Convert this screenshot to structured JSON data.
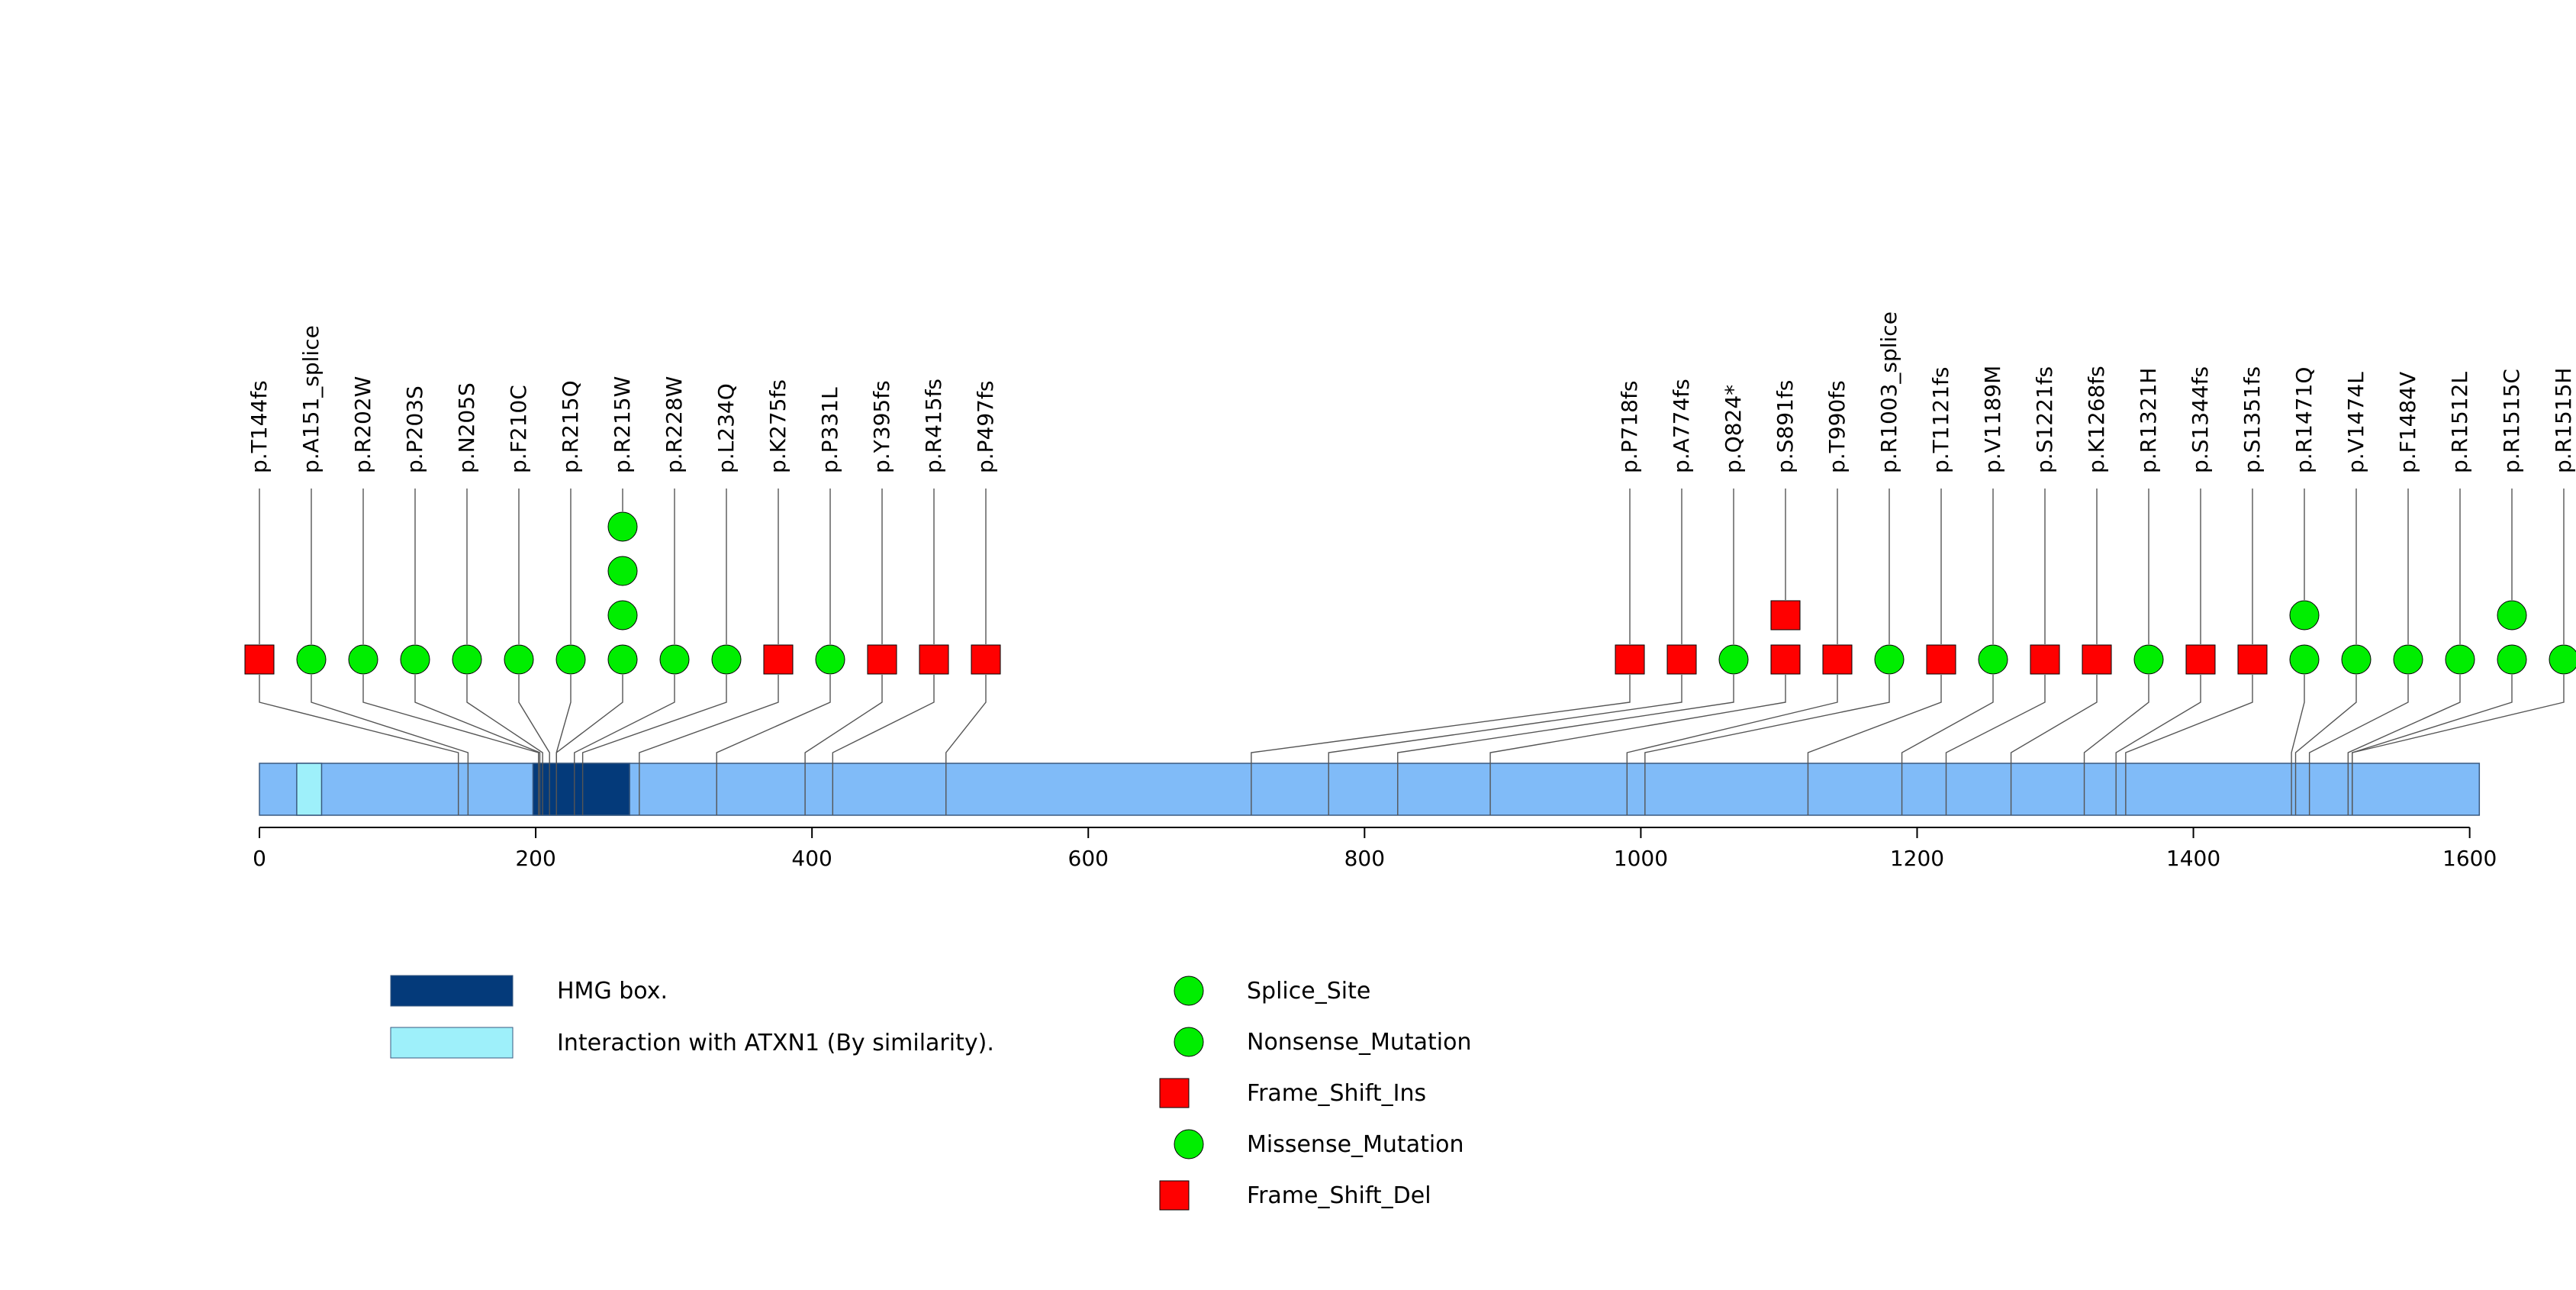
{
  "chart_data": {
    "type": "lollipop",
    "title": "",
    "xlabel": "",
    "ylabel": "",
    "x_range": [
      0,
      1610
    ],
    "x_ticks": [
      0,
      200,
      400,
      600,
      800,
      1000,
      1200,
      1400,
      1600
    ],
    "protein_length": 1607,
    "domains": [
      {
        "name": "HMG box.",
        "start": 198,
        "end": 268,
        "color": "#043a7a"
      },
      {
        "name": "Interaction with ATXN1 (By similarity).",
        "start": 27,
        "end": 45,
        "color": "#9ef0fa"
      }
    ],
    "lollipops": [
      {
        "label": "p.T144fs",
        "position": 144,
        "marks": [
          "Frame_Shift_Del"
        ]
      },
      {
        "label": "p.A151_splice",
        "position": 151,
        "marks": [
          "Splice_Site"
        ]
      },
      {
        "label": "p.R202W",
        "position": 202,
        "marks": [
          "Missense_Mutation"
        ]
      },
      {
        "label": "p.P203S",
        "position": 203,
        "marks": [
          "Missense_Mutation"
        ]
      },
      {
        "label": "p.N205S",
        "position": 205,
        "marks": [
          "Missense_Mutation"
        ]
      },
      {
        "label": "p.F210C",
        "position": 210,
        "marks": [
          "Missense_Mutation"
        ]
      },
      {
        "label": "p.R215Q",
        "position": 215,
        "marks": [
          "Missense_Mutation"
        ]
      },
      {
        "label": "p.R215W",
        "position": 215,
        "marks": [
          "Missense_Mutation",
          "Missense_Mutation",
          "Missense_Mutation",
          "Missense_Mutation"
        ]
      },
      {
        "label": "p.R228W",
        "position": 228,
        "marks": [
          "Missense_Mutation"
        ]
      },
      {
        "label": "p.L234Q",
        "position": 234,
        "marks": [
          "Missense_Mutation"
        ]
      },
      {
        "label": "p.K275fs",
        "position": 275,
        "marks": [
          "Frame_Shift_Del"
        ]
      },
      {
        "label": "p.P331L",
        "position": 331,
        "marks": [
          "Missense_Mutation"
        ]
      },
      {
        "label": "p.Y395fs",
        "position": 395,
        "marks": [
          "Frame_Shift_Del"
        ]
      },
      {
        "label": "p.R415fs",
        "position": 415,
        "marks": [
          "Frame_Shift_Del"
        ]
      },
      {
        "label": "p.P497fs",
        "position": 497,
        "marks": [
          "Frame_Shift_Del"
        ]
      },
      {
        "label": "p.P718fs",
        "position": 718,
        "marks": [
          "Frame_Shift_Del"
        ]
      },
      {
        "label": "p.A774fs",
        "position": 774,
        "marks": [
          "Frame_Shift_Del"
        ]
      },
      {
        "label": "p.Q824*",
        "position": 824,
        "marks": [
          "Nonsense_Mutation"
        ]
      },
      {
        "label": "p.S891fs",
        "position": 891,
        "marks": [
          "Frame_Shift_Del",
          "Frame_Shift_Ins"
        ]
      },
      {
        "label": "p.T990fs",
        "position": 990,
        "marks": [
          "Frame_Shift_Del"
        ]
      },
      {
        "label": "p.R1003_splice",
        "position": 1003,
        "marks": [
          "Splice_Site"
        ]
      },
      {
        "label": "p.T1121fs",
        "position": 1121,
        "marks": [
          "Frame_Shift_Del"
        ]
      },
      {
        "label": "p.V1189M",
        "position": 1189,
        "marks": [
          "Missense_Mutation"
        ]
      },
      {
        "label": "p.S1221fs",
        "position": 1221,
        "marks": [
          "Frame_Shift_Del"
        ]
      },
      {
        "label": "p.K1268fs",
        "position": 1268,
        "marks": [
          "Frame_Shift_Del"
        ]
      },
      {
        "label": "p.R1321H",
        "position": 1321,
        "marks": [
          "Missense_Mutation"
        ]
      },
      {
        "label": "p.S1344fs",
        "position": 1344,
        "marks": [
          "Frame_Shift_Del"
        ]
      },
      {
        "label": "p.S1351fs",
        "position": 1351,
        "marks": [
          "Frame_Shift_Del"
        ]
      },
      {
        "label": "p.R1471Q",
        "position": 1471,
        "marks": [
          "Missense_Mutation",
          "Missense_Mutation"
        ]
      },
      {
        "label": "p.V1474L",
        "position": 1474,
        "marks": [
          "Missense_Mutation"
        ]
      },
      {
        "label": "p.F1484V",
        "position": 1484,
        "marks": [
          "Missense_Mutation"
        ]
      },
      {
        "label": "p.R1512L",
        "position": 1512,
        "marks": [
          "Missense_Mutation"
        ]
      },
      {
        "label": "p.R1515C",
        "position": 1515,
        "marks": [
          "Missense_Mutation",
          "Missense_Mutation"
        ]
      },
      {
        "label": "p.R1515H",
        "position": 1515,
        "marks": [
          "Missense_Mutation"
        ]
      }
    ],
    "legend_domains": [
      {
        "label": "HMG box.",
        "color": "#043a7a"
      },
      {
        "label": "Interaction with ATXN1 (By similarity).",
        "color": "#9ef0fa"
      }
    ],
    "legend_mutations": [
      {
        "label": "Splice_Site",
        "shape": "circle",
        "color": "#00ee00"
      },
      {
        "label": "Nonsense_Mutation",
        "shape": "circle",
        "color": "#00ee00"
      },
      {
        "label": "Frame_Shift_Ins",
        "shape": "square",
        "color": "#ff0000"
      },
      {
        "label": "Missense_Mutation",
        "shape": "circle",
        "color": "#00ee00"
      },
      {
        "label": "Frame_Shift_Del",
        "shape": "square",
        "color": "#ff0000"
      }
    ],
    "colors": {
      "backbone": "#80bbf8",
      "circle": "#00ee00",
      "square": "#ff0000"
    }
  }
}
